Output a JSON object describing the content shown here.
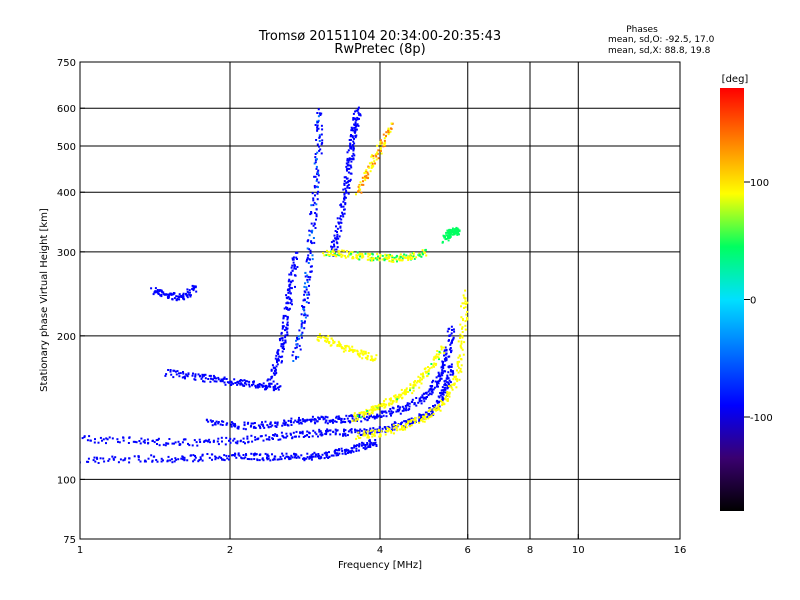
{
  "chart_data": {
    "type": "scatter",
    "title": "Tromsø 20151104 20:34:00-20:35:43",
    "subtitle": "RwPretec (8p)",
    "xlabel": "Frequency [MHz]",
    "ylabel": "Stationary phase Virtual Height [km]",
    "x_scale": "log",
    "y_scale": "log",
    "xlim": [
      1,
      16
    ],
    "ylim": [
      75,
      750
    ],
    "x_ticks": [
      1,
      2,
      4,
      6,
      8,
      10,
      16
    ],
    "x_tick_labels": [
      "1",
      "2",
      "4",
      "6",
      "8",
      "10",
      "16"
    ],
    "y_ticks": [
      75,
      100,
      200,
      300,
      400,
      500,
      600,
      750
    ],
    "y_tick_labels": [
      "75",
      "100",
      "200",
      "300",
      "400",
      "500",
      "600",
      "750"
    ],
    "x_grid": [
      2,
      4,
      6,
      8,
      10
    ],
    "y_grid": [
      100,
      200,
      300,
      400,
      500,
      600
    ],
    "grid": true,
    "colorbar": {
      "label": "[deg]",
      "range": [
        -180,
        180
      ],
      "ticks": [
        100,
        0,
        -100
      ],
      "tick_labels": [
        "100",
        "0",
        "-100"
      ],
      "colors": [
        "#000000",
        "#3a0070",
        "#0000ff",
        "#0070ff",
        "#00e0ff",
        "#00ff60",
        "#ffff00",
        "#ff8000",
        "#ff0000"
      ]
    },
    "stats": {
      "header": "Phases",
      "o_mode": "mean, sd,O: -92.5, 17.0",
      "x_mode": "mean, sd,X:  88.8, 19.8"
    },
    "traces": [
      {
        "f": [
          1.0,
          1.3,
          1.6,
          1.9,
          2.2,
          2.5,
          2.8,
          3.1,
          3.4,
          3.7,
          3.9
        ],
        "h": [
          110,
          111,
          111,
          112,
          112,
          112,
          112,
          113,
          115,
          118,
          120
        ],
        "phase": -95
      },
      {
        "f": [
          1.0,
          1.3,
          1.6,
          2.0,
          2.4,
          2.8,
          3.2,
          3.6,
          4.0,
          4.4,
          4.8,
          5.1,
          5.3,
          5.45,
          5.55
        ],
        "h": [
          122,
          121,
          120,
          121,
          123,
          125,
          126,
          126,
          128,
          131,
          135,
          141,
          149,
          160,
          175
        ],
        "phase": -97
      },
      {
        "f": [
          1.8,
          2.1,
          2.4,
          2.7,
          3.0,
          3.3,
          3.6,
          4.0,
          4.4,
          4.8,
          5.1,
          5.3,
          5.45,
          5.55
        ],
        "h": [
          132,
          130,
          131,
          133,
          134,
          134,
          135,
          137,
          141,
          147,
          156,
          168,
          185,
          210
        ],
        "phase": -93
      },
      {
        "f": [
          3.6,
          4.0,
          4.5,
          5.0,
          5.4,
          5.7,
          5.85,
          5.9
        ],
        "h": [
          124,
          126,
          130,
          137,
          147,
          165,
          200,
          250
        ],
        "phase": 85
      },
      {
        "f": [
          3.5,
          3.8,
          4.1,
          4.4,
          4.7,
          5.0,
          5.3
        ],
        "h": [
          135,
          139,
          145,
          151,
          159,
          171,
          190
        ],
        "phase": 80
      },
      {
        "f": [
          1.5,
          1.7,
          1.9,
          2.1,
          2.3,
          2.5
        ],
        "h": [
          168,
          165,
          162,
          160,
          158,
          157
        ],
        "phase": -90
      },
      {
        "f": [
          2.7,
          2.8,
          2.85,
          2.9,
          2.95,
          3.0,
          3.0
        ],
        "h": [
          180,
          220,
          260,
          320,
          400,
          500,
          600
        ],
        "phase": -75
      },
      {
        "f": [
          2.4,
          2.5,
          2.55,
          2.6,
          2.65,
          2.7
        ],
        "h": [
          160,
          180,
          200,
          230,
          260,
          300
        ],
        "phase": -92
      },
      {
        "f": [
          3.2,
          3.3,
          3.4,
          3.45,
          3.5,
          3.55,
          3.6
        ],
        "h": [
          300,
          340,
          400,
          450,
          500,
          550,
          600
        ],
        "phase": -97
      },
      {
        "f": [
          3.1,
          3.4,
          3.7,
          4.0,
          4.3,
          4.6,
          4.9
        ],
        "h": [
          300,
          298,
          295,
          293,
          292,
          295,
          300
        ],
        "phase": 75
      },
      {
        "f": [
          3.6,
          3.8,
          4.0,
          4.2
        ],
        "h": [
          400,
          450,
          500,
          560
        ],
        "phase": 110
      },
      {
        "f": [
          5.4,
          5.5,
          5.6,
          5.7
        ],
        "h": [
          320,
          330,
          335,
          330
        ],
        "phase": 40
      },
      {
        "f": [
          3.0,
          3.3,
          3.6,
          3.9
        ],
        "h": [
          200,
          192,
          185,
          180
        ],
        "phase": 85
      },
      {
        "f": [
          1.4,
          1.5,
          1.6,
          1.7
        ],
        "h": [
          250,
          245,
          240,
          255
        ],
        "phase": -95
      }
    ]
  }
}
